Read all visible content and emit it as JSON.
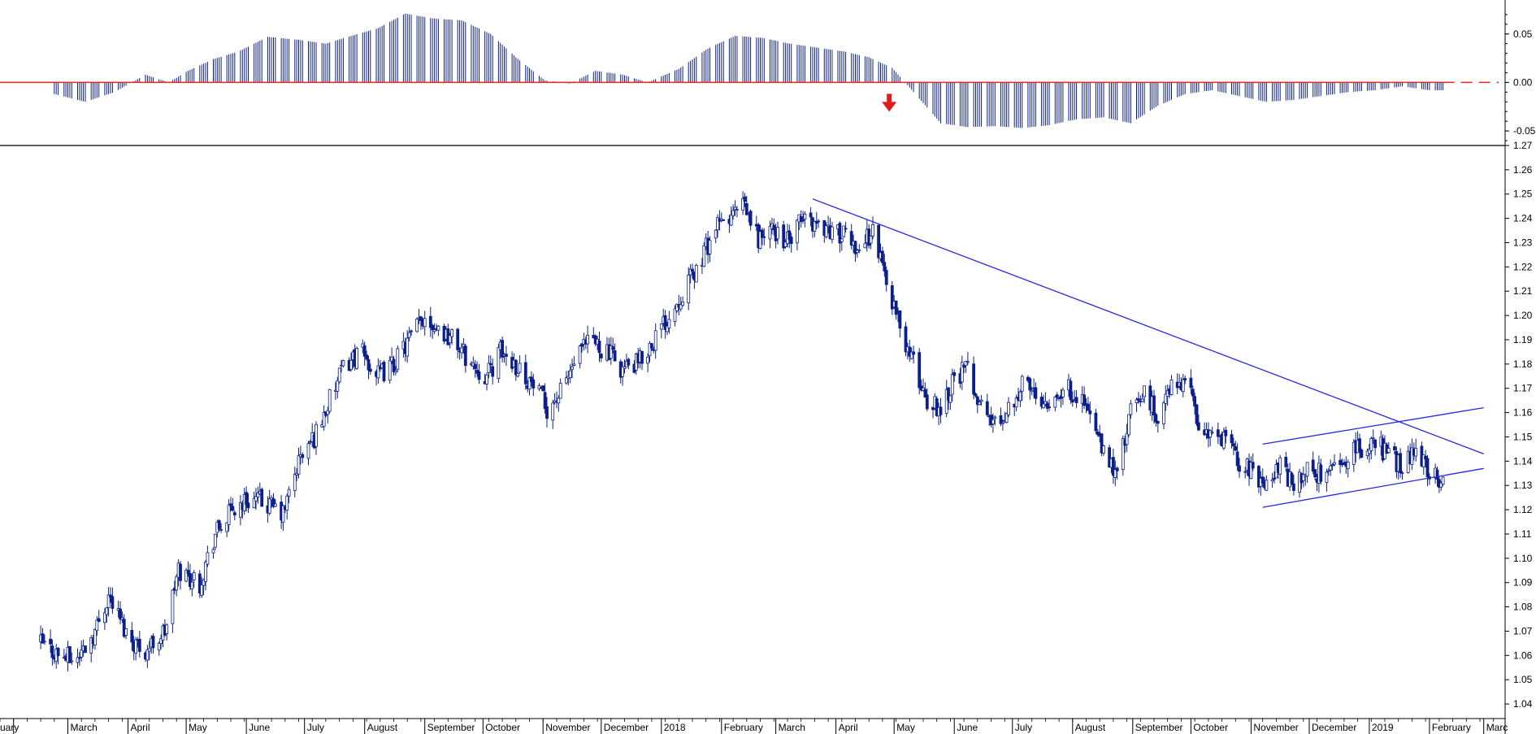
{
  "chart_data": [
    {
      "type": "bar",
      "panel": "oscillator",
      "title": "",
      "y_ticks": [
        "0.05",
        "0.00",
        "-0.05"
      ],
      "ylim": [
        -0.065,
        0.085
      ],
      "zero_line": 0.0,
      "signal": "down-arrow",
      "signal_date": "2018-05-01",
      "colors": {
        "bars": "#0b1f8c",
        "zero_line": "#e8261e",
        "arrow": "#e11a1a"
      },
      "series": [
        {
          "dates": [
            "2017-02-22",
            "2017-03-10",
            "2017-03-25",
            "2017-04-10",
            "2017-04-22",
            "2017-05-02",
            "2017-05-15",
            "2017-05-28",
            "2017-06-12",
            "2017-06-28",
            "2017-07-12",
            "2017-07-25",
            "2017-08-08",
            "2017-08-22",
            "2017-09-05",
            "2017-09-20",
            "2017-10-05",
            "2017-10-18",
            "2017-11-02",
            "2017-11-15",
            "2017-11-28",
            "2017-12-12",
            "2017-12-25",
            "2018-01-10",
            "2018-01-25",
            "2018-02-08",
            "2018-02-22",
            "2018-03-08",
            "2018-03-22",
            "2018-04-05",
            "2018-04-18",
            "2018-04-30",
            "2018-05-12",
            "2018-05-25",
            "2018-06-08",
            "2018-06-22",
            "2018-07-06",
            "2018-07-20",
            "2018-08-03",
            "2018-08-17",
            "2018-08-31",
            "2018-09-14",
            "2018-09-28",
            "2018-10-12",
            "2018-10-26",
            "2018-11-09",
            "2018-11-23",
            "2018-12-07",
            "2018-12-21",
            "2019-01-04",
            "2019-01-18",
            "2019-02-01",
            "2019-02-08"
          ],
          "values": [
            -0.012,
            -0.02,
            -0.01,
            0.008,
            0.0,
            0.012,
            0.024,
            0.032,
            0.047,
            0.044,
            0.04,
            0.048,
            0.056,
            0.071,
            0.066,
            0.064,
            0.05,
            0.026,
            0.002,
            -0.001,
            0.012,
            0.008,
            0.0,
            0.014,
            0.035,
            0.048,
            0.046,
            0.04,
            0.036,
            0.032,
            0.026,
            0.015,
            -0.012,
            -0.042,
            -0.046,
            -0.045,
            -0.047,
            -0.044,
            -0.038,
            -0.036,
            -0.042,
            -0.024,
            -0.012,
            -0.008,
            -0.014,
            -0.02,
            -0.018,
            -0.014,
            -0.01,
            -0.008,
            -0.004,
            -0.008,
            -0.008
          ]
        }
      ]
    },
    {
      "type": "line",
      "panel": "price",
      "title": "",
      "y_ticks": [
        "1.27",
        "1.26",
        "1.25",
        "1.24",
        "1.23",
        "1.22",
        "1.21",
        "1.20",
        "1.19",
        "1.18",
        "1.17",
        "1.16",
        "1.15",
        "1.14",
        "1.13",
        "1.12",
        "1.11",
        "1.10",
        "1.09",
        "1.08",
        "1.07",
        "1.06",
        "1.05",
        "1.04"
      ],
      "ylim": [
        1.034,
        1.27
      ],
      "colors": {
        "price": "#0b1f8c",
        "trendline": "#2626e6"
      },
      "series": [
        {
          "dates": [
            "2017-02-15",
            "2017-02-25",
            "2017-03-05",
            "2017-03-15",
            "2017-03-22",
            "2017-04-01",
            "2017-04-10",
            "2017-04-20",
            "2017-04-27",
            "2017-05-08",
            "2017-05-16",
            "2017-05-25",
            "2017-06-03",
            "2017-06-12",
            "2017-06-20",
            "2017-06-28",
            "2017-07-06",
            "2017-07-14",
            "2017-07-22",
            "2017-07-30",
            "2017-08-08",
            "2017-08-16",
            "2017-08-24",
            "2017-09-01",
            "2017-09-08",
            "2017-09-16",
            "2017-09-25",
            "2017-10-03",
            "2017-10-10",
            "2017-10-18",
            "2017-10-26",
            "2017-11-03",
            "2017-11-10",
            "2017-11-18",
            "2017-11-26",
            "2017-12-04",
            "2017-12-12",
            "2017-12-20",
            "2017-12-28",
            "2018-01-05",
            "2018-01-12",
            "2018-01-20",
            "2018-01-28",
            "2018-02-05",
            "2018-02-12",
            "2018-02-20",
            "2018-02-28",
            "2018-03-08",
            "2018-03-15",
            "2018-03-22",
            "2018-03-30",
            "2018-04-06",
            "2018-04-13",
            "2018-04-20",
            "2018-04-27",
            "2018-05-04",
            "2018-05-11",
            "2018-05-18",
            "2018-05-25",
            "2018-06-01",
            "2018-06-08",
            "2018-06-15",
            "2018-06-22",
            "2018-06-29",
            "2018-07-06",
            "2018-07-13",
            "2018-07-20",
            "2018-07-27",
            "2018-08-03",
            "2018-08-10",
            "2018-08-17",
            "2018-08-24",
            "2018-08-31",
            "2018-09-07",
            "2018-09-14",
            "2018-09-21",
            "2018-09-28",
            "2018-10-05",
            "2018-10-12",
            "2018-10-19",
            "2018-10-26",
            "2018-11-02",
            "2018-11-09",
            "2018-11-16",
            "2018-11-23",
            "2018-11-30",
            "2018-12-07",
            "2018-12-14",
            "2018-12-21",
            "2018-12-28",
            "2019-01-04",
            "2019-01-11",
            "2019-01-18",
            "2019-01-25",
            "2019-02-01",
            "2019-02-08"
          ],
          "values": [
            1.065,
            1.06,
            1.058,
            1.07,
            1.085,
            1.068,
            1.062,
            1.07,
            1.095,
            1.09,
            1.11,
            1.12,
            1.125,
            1.122,
            1.118,
            1.14,
            1.15,
            1.165,
            1.18,
            1.185,
            1.175,
            1.18,
            1.19,
            1.2,
            1.195,
            1.19,
            1.18,
            1.175,
            1.185,
            1.18,
            1.172,
            1.162,
            1.168,
            1.182,
            1.19,
            1.185,
            1.178,
            1.18,
            1.19,
            1.2,
            1.21,
            1.22,
            1.235,
            1.24,
            1.245,
            1.232,
            1.235,
            1.23,
            1.24,
            1.238,
            1.235,
            1.232,
            1.228,
            1.235,
            1.215,
            1.195,
            1.18,
            1.165,
            1.162,
            1.175,
            1.178,
            1.162,
            1.155,
            1.162,
            1.172,
            1.168,
            1.165,
            1.17,
            1.168,
            1.16,
            1.142,
            1.135,
            1.16,
            1.168,
            1.158,
            1.17,
            1.175,
            1.155,
            1.15,
            1.148,
            1.14,
            1.135,
            1.132,
            1.138,
            1.13,
            1.136,
            1.135,
            1.138,
            1.142,
            1.145,
            1.148,
            1.142,
            1.138,
            1.147,
            1.136,
            1.132
          ]
        }
      ],
      "trendlines": [
        {
          "name": "",
          "points": [
            [
              "2018-03-20",
              1.248
            ],
            [
              "2019-03-01",
              1.143
            ]
          ]
        },
        {
          "name": "",
          "points": [
            [
              "2018-11-07",
              1.121
            ],
            [
              "2019-03-01",
              1.137
            ]
          ]
        },
        {
          "name": "",
          "points": [
            [
              "2018-11-07",
              1.147
            ],
            [
              "2019-03-01",
              1.162
            ]
          ]
        }
      ]
    }
  ],
  "x_axis": {
    "months": [
      {
        "label": "uary",
        "date": "2017-02-01"
      },
      {
        "label": "March",
        "date": "2017-03-01"
      },
      {
        "label": "April",
        "date": "2017-04-01"
      },
      {
        "label": "May",
        "date": "2017-05-01"
      },
      {
        "label": "June",
        "date": "2017-06-01"
      },
      {
        "label": "July",
        "date": "2017-07-01"
      },
      {
        "label": "August",
        "date": "2017-08-01"
      },
      {
        "label": "September",
        "date": "2017-09-01"
      },
      {
        "label": "October",
        "date": "2017-10-01"
      },
      {
        "label": "November",
        "date": "2017-11-01"
      },
      {
        "label": "December",
        "date": "2017-12-01"
      },
      {
        "label": "2018",
        "date": "2018-01-01"
      },
      {
        "label": "February",
        "date": "2018-02-01"
      },
      {
        "label": "March",
        "date": "2018-03-01"
      },
      {
        "label": "April",
        "date": "2018-04-01"
      },
      {
        "label": "May",
        "date": "2018-05-01"
      },
      {
        "label": "June",
        "date": "2018-06-01"
      },
      {
        "label": "July",
        "date": "2018-07-01"
      },
      {
        "label": "August",
        "date": "2018-08-01"
      },
      {
        "label": "September",
        "date": "2018-09-01"
      },
      {
        "label": "October",
        "date": "2018-10-01"
      },
      {
        "label": "November",
        "date": "2018-11-01"
      },
      {
        "label": "December",
        "date": "2018-12-01"
      },
      {
        "label": "2019",
        "date": "2019-01-01"
      },
      {
        "label": "February",
        "date": "2019-02-01"
      },
      {
        "label": "Marc",
        "date": "2019-03-01"
      }
    ],
    "range": [
      "2017-01-25",
      "2019-03-12"
    ]
  }
}
